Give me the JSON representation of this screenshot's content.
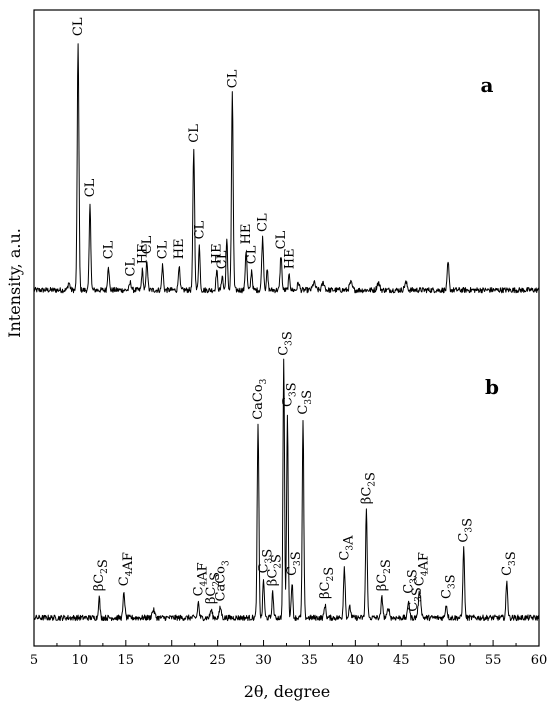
{
  "chart_data": {
    "type": "line",
    "xlabel": "2θ, degree",
    "ylabel": "Intensity, a.u.",
    "xlim": [
      5,
      60
    ],
    "x_ticks": [
      5,
      10,
      15,
      20,
      25,
      30,
      35,
      40,
      45,
      50,
      55,
      60
    ],
    "grid": false,
    "panels": [
      {
        "letter": "a",
        "baseline": 4,
        "peaks": [
          {
            "x": 8.8,
            "h": 3,
            "w": 0.15
          },
          {
            "x": 9.8,
            "h": 100,
            "w": 0.13
          },
          {
            "x": 11.1,
            "h": 35,
            "w": 0.12
          },
          {
            "x": 13.1,
            "h": 10,
            "w": 0.12
          },
          {
            "x": 15.5,
            "h": 3,
            "w": 0.15
          },
          {
            "x": 16.8,
            "h": 8,
            "w": 0.12
          },
          {
            "x": 17.3,
            "h": 12,
            "w": 0.12
          },
          {
            "x": 19.0,
            "h": 10,
            "w": 0.12
          },
          {
            "x": 20.8,
            "h": 10,
            "w": 0.12
          },
          {
            "x": 22.4,
            "h": 57,
            "w": 0.13
          },
          {
            "x": 23.0,
            "h": 18,
            "w": 0.12
          },
          {
            "x": 24.9,
            "h": 8,
            "w": 0.12
          },
          {
            "x": 25.5,
            "h": 6,
            "w": 0.12
          },
          {
            "x": 26.0,
            "h": 20,
            "w": 0.12
          },
          {
            "x": 26.6,
            "h": 79,
            "w": 0.13
          },
          {
            "x": 28.1,
            "h": 16,
            "w": 0.13
          },
          {
            "x": 28.7,
            "h": 8,
            "w": 0.12
          },
          {
            "x": 29.9,
            "h": 21,
            "w": 0.14
          },
          {
            "x": 30.4,
            "h": 8,
            "w": 0.12
          },
          {
            "x": 31.9,
            "h": 14,
            "w": 0.13
          },
          {
            "x": 32.8,
            "h": 6,
            "w": 0.12
          },
          {
            "x": 33.8,
            "h": 3,
            "w": 0.15
          },
          {
            "x": 35.5,
            "h": 3,
            "w": 0.2
          },
          {
            "x": 36.5,
            "h": 3,
            "w": 0.2
          },
          {
            "x": 39.5,
            "h": 3,
            "w": 0.2
          },
          {
            "x": 42.5,
            "h": 3,
            "w": 0.2
          },
          {
            "x": 45.5,
            "h": 3,
            "w": 0.2
          },
          {
            "x": 50.1,
            "h": 11,
            "w": 0.13
          }
        ],
        "labels": [
          {
            "x": 9.8,
            "parts": [
              [
                "CL",
                ""
              ]
            ]
          },
          {
            "x": 11.1,
            "parts": [
              [
                "CL",
                ""
              ]
            ]
          },
          {
            "x": 13.1,
            "parts": [
              [
                "CL",
                ""
              ]
            ]
          },
          {
            "x": 15.5,
            "parts": [
              [
                "CL",
                ""
              ]
            ]
          },
          {
            "x": 16.8,
            "parts": [
              [
                "HE",
                ""
              ]
            ]
          },
          {
            "x": 17.3,
            "parts": [
              [
                "CL",
                ""
              ]
            ]
          },
          {
            "x": 19.0,
            "parts": [
              [
                "CL",
                ""
              ]
            ]
          },
          {
            "x": 20.8,
            "parts": [
              [
                "HE",
                ""
              ]
            ]
          },
          {
            "x": 22.4,
            "parts": [
              [
                "CL",
                ""
              ]
            ]
          },
          {
            "x": 23.0,
            "parts": [
              [
                "CL",
                ""
              ]
            ]
          },
          {
            "x": 24.9,
            "parts": [
              [
                "HE",
                ""
              ]
            ]
          },
          {
            "x": 25.5,
            "parts": [
              [
                "CL",
                ""
              ]
            ]
          },
          {
            "x": 26.6,
            "parts": [
              [
                "CL",
                ""
              ]
            ]
          },
          {
            "x": 28.1,
            "parts": [
              [
                "HE",
                ""
              ]
            ]
          },
          {
            "x": 28.7,
            "parts": [
              [
                "CL",
                ""
              ]
            ]
          },
          {
            "x": 29.9,
            "parts": [
              [
                "CL",
                ""
              ]
            ]
          },
          {
            "x": 31.9,
            "parts": [
              [
                "CL",
                ""
              ]
            ]
          },
          {
            "x": 32.8,
            "parts": [
              [
                "HE",
                ""
              ]
            ]
          }
        ]
      },
      {
        "letter": "b",
        "baseline": 4,
        "peaks": [
          {
            "x": 12.1,
            "h": 8,
            "w": 0.12
          },
          {
            "x": 14.8,
            "h": 10,
            "w": 0.13
          },
          {
            "x": 18.0,
            "h": 3,
            "w": 0.2
          },
          {
            "x": 22.9,
            "h": 6,
            "w": 0.12
          },
          {
            "x": 24.3,
            "h": 3,
            "w": 0.15
          },
          {
            "x": 25.3,
            "h": 4,
            "w": 0.15
          },
          {
            "x": 29.4,
            "h": 75,
            "w": 0.13
          },
          {
            "x": 30.0,
            "h": 15,
            "w": 0.12
          },
          {
            "x": 31.0,
            "h": 10,
            "w": 0.12
          },
          {
            "x": 32.2,
            "h": 100,
            "w": 0.12
          },
          {
            "x": 32.6,
            "h": 80,
            "w": 0.12
          },
          {
            "x": 33.1,
            "h": 14,
            "w": 0.12
          },
          {
            "x": 34.3,
            "h": 77,
            "w": 0.12
          },
          {
            "x": 36.7,
            "h": 5,
            "w": 0.13
          },
          {
            "x": 38.8,
            "h": 20,
            "w": 0.13
          },
          {
            "x": 39.4,
            "h": 4,
            "w": 0.15
          },
          {
            "x": 41.2,
            "h": 42,
            "w": 0.13
          },
          {
            "x": 42.9,
            "h": 8,
            "w": 0.13
          },
          {
            "x": 43.6,
            "h": 4,
            "w": 0.15
          },
          {
            "x": 45.8,
            "h": 7,
            "w": 0.13
          },
          {
            "x": 47.0,
            "h": 10,
            "w": 0.2
          },
          {
            "x": 49.9,
            "h": 5,
            "w": 0.15
          },
          {
            "x": 51.8,
            "h": 27,
            "w": 0.13
          },
          {
            "x": 56.5,
            "h": 14,
            "w": 0.13
          }
        ],
        "labels": [
          {
            "x": 12.1,
            "parts": [
              [
                "βC",
                ""
              ],
              [
                "2",
                "sub"
              ],
              [
                "S",
                ""
              ]
            ]
          },
          {
            "x": 14.8,
            "parts": [
              [
                "C",
                ""
              ],
              [
                "4",
                "sub"
              ],
              [
                "AF",
                ""
              ]
            ]
          },
          {
            "x": 22.9,
            "parts": [
              [
                "C",
                ""
              ],
              [
                "4",
                "sub"
              ],
              [
                "AF",
                ""
              ]
            ]
          },
          {
            "x": 24.3,
            "parts": [
              [
                "βC",
                ""
              ],
              [
                "2",
                "sub"
              ],
              [
                "S",
                ""
              ]
            ]
          },
          {
            "x": 25.3,
            "parts": [
              [
                "CaCo",
                ""
              ],
              [
                "3",
                "sub"
              ]
            ]
          },
          {
            "x": 29.4,
            "parts": [
              [
                "CaCo",
                ""
              ],
              [
                "3",
                "sub"
              ]
            ]
          },
          {
            "x": 30.0,
            "parts": [
              [
                "C",
                ""
              ],
              [
                "3",
                "sub"
              ],
              [
                "S",
                ""
              ]
            ]
          },
          {
            "x": 31.0,
            "parts": [
              [
                "βC",
                ""
              ],
              [
                "2",
                "sub"
              ],
              [
                "S",
                ""
              ]
            ]
          },
          {
            "x": 32.2,
            "parts": [
              [
                "C",
                ""
              ],
              [
                "3",
                "sub"
              ],
              [
                "S",
                ""
              ]
            ]
          },
          {
            "x": 32.6,
            "parts": [
              [
                "C",
                ""
              ],
              [
                "3",
                "sub"
              ],
              [
                "S",
                ""
              ]
            ]
          },
          {
            "x": 33.1,
            "parts": [
              [
                "C",
                ""
              ],
              [
                "3",
                "sub"
              ],
              [
                "S",
                ""
              ]
            ]
          },
          {
            "x": 34.3,
            "parts": [
              [
                "C",
                ""
              ],
              [
                "3",
                "sub"
              ],
              [
                "S",
                ""
              ]
            ]
          },
          {
            "x": 36.7,
            "parts": [
              [
                "βC",
                ""
              ],
              [
                "2",
                "sub"
              ],
              [
                "S",
                ""
              ]
            ]
          },
          {
            "x": 38.8,
            "parts": [
              [
                "C",
                ""
              ],
              [
                "3",
                "sub"
              ],
              [
                "A",
                ""
              ]
            ]
          },
          {
            "x": 41.2,
            "parts": [
              [
                "βC",
                ""
              ],
              [
                "2",
                "sub"
              ],
              [
                "S",
                ""
              ]
            ]
          },
          {
            "x": 42.9,
            "parts": [
              [
                "βC",
                ""
              ],
              [
                "2",
                "sub"
              ],
              [
                "S",
                ""
              ]
            ]
          },
          {
            "x": 45.8,
            "parts": [
              [
                "C",
                ""
              ],
              [
                "3",
                "sub"
              ],
              [
                "S",
                ""
              ]
            ]
          },
          {
            "x": 46.3,
            "parts": [
              [
                "C",
                ""
              ],
              [
                "3",
                "sub"
              ],
              [
                "S",
                ""
              ]
            ]
          },
          {
            "x": 47.0,
            "parts": [
              [
                "C",
                ""
              ],
              [
                "4",
                "sub"
              ],
              [
                "AF",
                ""
              ]
            ]
          },
          {
            "x": 49.9,
            "parts": [
              [
                "C",
                ""
              ],
              [
                "3",
                "sub"
              ],
              [
                "S",
                ""
              ]
            ]
          },
          {
            "x": 51.8,
            "parts": [
              [
                "C",
                ""
              ],
              [
                "3",
                "sub"
              ],
              [
                "S",
                ""
              ]
            ]
          },
          {
            "x": 56.5,
            "parts": [
              [
                "C",
                ""
              ],
              [
                "3",
                "sub"
              ],
              [
                "S",
                ""
              ]
            ]
          }
        ]
      }
    ]
  }
}
